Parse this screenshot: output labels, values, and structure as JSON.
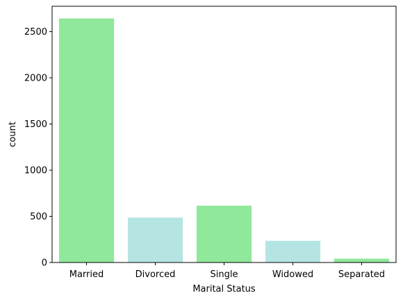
{
  "chart_data": {
    "type": "bar",
    "title": "",
    "xlabel": "Marital Status",
    "ylabel": "count",
    "categories": [
      "Married",
      "Divorced",
      "Single",
      "Widowed",
      "Separated"
    ],
    "values": [
      2643,
      486,
      615,
      235,
      42
    ],
    "bar_colors": [
      "#90e89b",
      "#b5e5e3",
      "#90e89b",
      "#b5e5e3",
      "#90e89b"
    ],
    "ylim": [
      0,
      2775
    ],
    "yticks": [
      0,
      500,
      1000,
      1500,
      2000,
      2500
    ],
    "grid": false,
    "legend": "none"
  }
}
